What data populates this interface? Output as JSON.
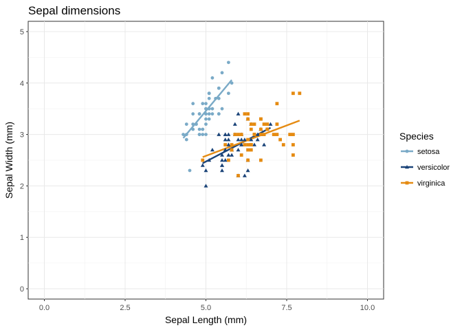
{
  "chart_data": {
    "type": "scatter",
    "title": "Sepal dimensions",
    "xlabel": "Sepal Length (mm)",
    "ylabel": "Sepal Width (mm)",
    "xlim": [
      -0.5,
      10.5
    ],
    "ylim": [
      -0.2,
      5.2
    ],
    "x_ticks": [
      0,
      2.5,
      5,
      7.5,
      10
    ],
    "x_tick_labels": [
      "0.0",
      "2.5",
      "5.0",
      "7.5",
      "10.0"
    ],
    "y_ticks": [
      0,
      1,
      2,
      3,
      4,
      5
    ],
    "y_tick_labels": [
      "0",
      "1",
      "2",
      "3",
      "4",
      "5"
    ],
    "grid": true,
    "legend": {
      "title": "Species",
      "position": "right"
    },
    "series": [
      {
        "name": "setosa",
        "color": "#7aaac7",
        "marker": "circle",
        "points": [
          [
            5.1,
            3.5
          ],
          [
            4.9,
            3.0
          ],
          [
            4.7,
            3.2
          ],
          [
            4.6,
            3.1
          ],
          [
            5.0,
            3.6
          ],
          [
            5.4,
            3.9
          ],
          [
            4.6,
            3.4
          ],
          [
            5.0,
            3.4
          ],
          [
            4.4,
            2.9
          ],
          [
            4.9,
            3.1
          ],
          [
            5.4,
            3.7
          ],
          [
            4.8,
            3.4
          ],
          [
            4.8,
            3.0
          ],
          [
            4.3,
            3.0
          ],
          [
            5.8,
            4.0
          ],
          [
            5.7,
            4.4
          ],
          [
            5.4,
            3.9
          ],
          [
            5.1,
            3.5
          ],
          [
            5.7,
            3.8
          ],
          [
            5.1,
            3.8
          ],
          [
            5.4,
            3.4
          ],
          [
            5.1,
            3.7
          ],
          [
            4.6,
            3.6
          ],
          [
            5.1,
            3.3
          ],
          [
            4.8,
            3.4
          ],
          [
            5.0,
            3.0
          ],
          [
            5.0,
            3.4
          ],
          [
            5.2,
            3.5
          ],
          [
            5.2,
            3.4
          ],
          [
            4.7,
            3.2
          ],
          [
            4.8,
            3.1
          ],
          [
            5.4,
            3.4
          ],
          [
            5.2,
            4.1
          ],
          [
            5.5,
            4.2
          ],
          [
            4.9,
            3.1
          ],
          [
            5.0,
            3.2
          ],
          [
            5.5,
            3.5
          ],
          [
            4.9,
            3.6
          ],
          [
            4.4,
            3.0
          ],
          [
            5.1,
            3.4
          ],
          [
            5.0,
            3.5
          ],
          [
            4.5,
            2.3
          ],
          [
            4.4,
            3.2
          ],
          [
            5.0,
            3.5
          ],
          [
            5.1,
            3.8
          ],
          [
            4.8,
            3.0
          ],
          [
            5.1,
            3.8
          ],
          [
            4.6,
            3.2
          ],
          [
            5.3,
            3.7
          ],
          [
            5.0,
            3.3
          ]
        ],
        "trend": [
          [
            4.3,
            2.93
          ],
          [
            5.8,
            4.06
          ]
        ]
      },
      {
        "name": "versicolor",
        "color": "#1a4378",
        "marker": "triangle",
        "points": [
          [
            7.0,
            3.2
          ],
          [
            6.4,
            3.2
          ],
          [
            6.9,
            3.1
          ],
          [
            5.5,
            2.3
          ],
          [
            6.5,
            2.8
          ],
          [
            5.7,
            2.8
          ],
          [
            6.3,
            3.3
          ],
          [
            4.9,
            2.4
          ],
          [
            6.6,
            2.9
          ],
          [
            5.2,
            2.7
          ],
          [
            5.0,
            2.0
          ],
          [
            5.9,
            3.0
          ],
          [
            6.0,
            2.2
          ],
          [
            6.1,
            2.9
          ],
          [
            5.6,
            2.9
          ],
          [
            6.7,
            3.1
          ],
          [
            5.6,
            3.0
          ],
          [
            5.8,
            2.7
          ],
          [
            6.2,
            2.2
          ],
          [
            5.6,
            2.5
          ],
          [
            5.9,
            3.2
          ],
          [
            6.1,
            2.8
          ],
          [
            6.3,
            2.5
          ],
          [
            6.1,
            2.8
          ],
          [
            6.4,
            2.9
          ],
          [
            6.6,
            3.0
          ],
          [
            6.8,
            2.8
          ],
          [
            6.7,
            3.0
          ],
          [
            6.0,
            2.9
          ],
          [
            5.7,
            2.6
          ],
          [
            5.5,
            2.4
          ],
          [
            5.5,
            2.4
          ],
          [
            5.8,
            2.7
          ],
          [
            6.0,
            2.7
          ],
          [
            5.4,
            3.0
          ],
          [
            6.0,
            3.4
          ],
          [
            6.7,
            3.1
          ],
          [
            6.3,
            2.3
          ],
          [
            5.6,
            3.0
          ],
          [
            5.5,
            2.5
          ],
          [
            5.5,
            2.6
          ],
          [
            6.1,
            3.0
          ],
          [
            5.8,
            2.6
          ],
          [
            5.0,
            2.3
          ],
          [
            5.6,
            2.7
          ],
          [
            5.7,
            3.0
          ],
          [
            5.7,
            2.9
          ],
          [
            6.2,
            2.9
          ],
          [
            5.1,
            2.5
          ],
          [
            5.7,
            2.8
          ]
        ],
        "trend": [
          [
            4.9,
            2.44
          ],
          [
            7.0,
            3.13
          ]
        ]
      },
      {
        "name": "virginica",
        "color": "#e58b12",
        "marker": "square",
        "points": [
          [
            6.3,
            3.3
          ],
          [
            5.8,
            2.7
          ],
          [
            7.1,
            3.0
          ],
          [
            6.3,
            2.9
          ],
          [
            6.5,
            3.0
          ],
          [
            7.6,
            3.0
          ],
          [
            4.9,
            2.5
          ],
          [
            7.3,
            2.9
          ],
          [
            6.7,
            2.5
          ],
          [
            7.2,
            3.6
          ],
          [
            6.5,
            3.2
          ],
          [
            6.4,
            2.7
          ],
          [
            6.8,
            3.0
          ],
          [
            5.7,
            2.5
          ],
          [
            5.8,
            2.8
          ],
          [
            6.4,
            3.2
          ],
          [
            6.5,
            3.0
          ],
          [
            7.7,
            3.8
          ],
          [
            7.7,
            2.6
          ],
          [
            6.0,
            2.2
          ],
          [
            6.9,
            3.2
          ],
          [
            5.6,
            2.8
          ],
          [
            7.7,
            2.8
          ],
          [
            6.3,
            2.7
          ],
          [
            6.7,
            3.3
          ],
          [
            7.2,
            3.2
          ],
          [
            6.2,
            2.8
          ],
          [
            6.1,
            3.0
          ],
          [
            6.4,
            2.8
          ],
          [
            7.2,
            3.0
          ],
          [
            7.4,
            2.8
          ],
          [
            7.9,
            3.8
          ],
          [
            6.4,
            2.8
          ],
          [
            6.3,
            2.8
          ],
          [
            6.1,
            2.6
          ],
          [
            7.7,
            3.0
          ],
          [
            6.3,
            3.4
          ],
          [
            6.4,
            3.1
          ],
          [
            6.0,
            3.0
          ],
          [
            6.9,
            3.1
          ],
          [
            6.7,
            3.1
          ],
          [
            6.9,
            3.1
          ],
          [
            5.8,
            2.7
          ],
          [
            6.8,
            3.2
          ],
          [
            6.7,
            3.3
          ],
          [
            6.7,
            3.0
          ],
          [
            6.3,
            2.5
          ],
          [
            6.5,
            3.0
          ],
          [
            6.2,
            3.4
          ],
          [
            5.9,
            3.0
          ]
        ],
        "trend": [
          [
            4.9,
            2.56
          ],
          [
            7.9,
            3.27
          ]
        ]
      }
    ]
  }
}
